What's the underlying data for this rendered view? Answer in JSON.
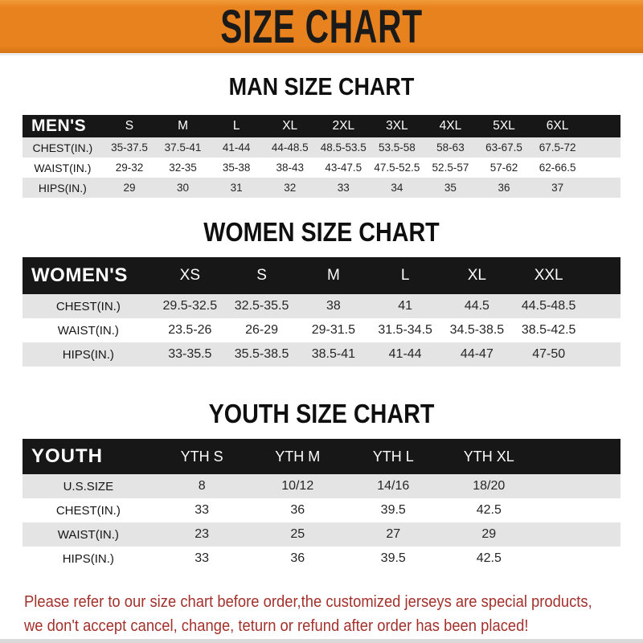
{
  "banner": {
    "title": "SIZE CHART",
    "bg_color": "#e8821e",
    "text_color": "#1a1a1a"
  },
  "sections": [
    {
      "id": "men",
      "title": "MAN SIZE CHART",
      "header_label": "MEN'S",
      "columns": [
        "S",
        "M",
        "L",
        "XL",
        "2XL",
        "3XL",
        "4XL",
        "5XL",
        "6XL"
      ],
      "rows": [
        {
          "label": "CHEST(IN.)",
          "values": [
            "35-37.5",
            "37.5-41",
            "41-44",
            "44-48.5",
            "48.5-53.5",
            "53.5-58",
            "58-63",
            "63-67.5",
            "67.5-72"
          ]
        },
        {
          "label": "WAIST(IN.)",
          "values": [
            "29-32",
            "32-35",
            "35-38",
            "38-43",
            "43-47.5",
            "47.5-52.5",
            "52.5-57",
            "57-62",
            "62-66.5"
          ]
        },
        {
          "label": "HIPS(IN.)",
          "values": [
            "29",
            "30",
            "31",
            "32",
            "33",
            "34",
            "35",
            "36",
            "37"
          ]
        }
      ]
    },
    {
      "id": "women",
      "title": "WOMEN SIZE CHART",
      "header_label": "WOMEN'S",
      "columns": [
        "XS",
        "S",
        "M",
        "L",
        "XL",
        "XXL"
      ],
      "rows": [
        {
          "label": "CHEST(IN.)",
          "values": [
            "29.5-32.5",
            "32.5-35.5",
            "38",
            "41",
            "44.5",
            "44.5-48.5"
          ]
        },
        {
          "label": "WAIST(IN.)",
          "values": [
            "23.5-26",
            "26-29",
            "29-31.5",
            "31.5-34.5",
            "34.5-38.5",
            "38.5-42.5"
          ]
        },
        {
          "label": "HIPS(IN.)",
          "values": [
            "33-35.5",
            "35.5-38.5",
            "38.5-41",
            "41-44",
            "44-47",
            "47-50"
          ]
        }
      ]
    },
    {
      "id": "youth",
      "title": "YOUTH SIZE CHART",
      "header_label": "YOUTH",
      "columns": [
        "YTH S",
        "YTH M",
        "YTH L",
        "YTH XL"
      ],
      "rows": [
        {
          "label": "U.S.SIZE",
          "values": [
            "8",
            "10/12",
            "14/16",
            "18/20"
          ]
        },
        {
          "label": "CHEST(IN.)",
          "values": [
            "33",
            "36",
            "39.5",
            "42.5"
          ]
        },
        {
          "label": "WAIST(IN.)",
          "values": [
            "23",
            "25",
            "27",
            "29"
          ]
        },
        {
          "label": "HIPS(IN.)",
          "values": [
            "33",
            "36",
            "39.5",
            "42.5"
          ]
        }
      ]
    }
  ],
  "footer": {
    "line1": "Please refer to our size chart before order,the customized jerseys are special products,",
    "line2": "we don't accept cancel, change, teturn or refund after order has been placed!",
    "text_color": "#a3312b"
  },
  "colors": {
    "header_bar": "#171717",
    "row_alt": "#e4e4e4",
    "row_plain": "#ffffff"
  }
}
